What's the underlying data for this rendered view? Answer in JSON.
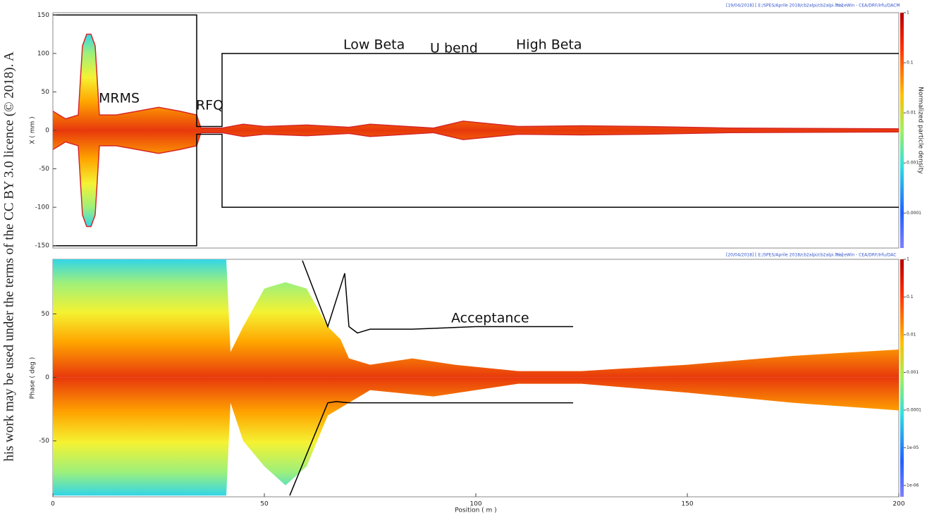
{
  "watermark": "his work may be used under the terms of the CC BY 3.0 licence (© 2018). A",
  "chart_data": [
    {
      "type": "line",
      "header": "[19/04/2018] [ E:/SPES/Aprile 2018/cb2alpi/cb2alpi.ini ]",
      "source": "TraceWin - CEA/DRF/Irfu/DACM",
      "y_label": "X ( mm )",
      "xlim": [
        0,
        200
      ],
      "ylim": [
        -153,
        153
      ],
      "yticks": [
        150,
        100,
        50,
        0,
        -50,
        -100,
        -150
      ],
      "annotations": [
        "MRMS",
        "RFQ",
        "Low Beta",
        "U bend",
        "High Beta"
      ],
      "colorbar_label": "Normalized particle density",
      "colorbar_lim": [
        2e-05,
        1
      ],
      "colorbar_ticks": [
        1,
        0.1,
        0.01,
        0.001,
        0.0001
      ],
      "series": [
        {
          "style": "area-line",
          "color": "#d62728",
          "x": [
            0,
            3,
            6,
            7,
            8,
            9,
            10,
            11,
            15,
            20,
            25,
            30,
            34,
            35,
            40,
            45,
            50,
            60,
            70,
            75,
            90,
            97,
            110,
            125,
            140,
            160,
            200
          ],
          "values": [
            25,
            15,
            20,
            110,
            125,
            125,
            110,
            20,
            20,
            25,
            30,
            25,
            20,
            3,
            3,
            8,
            5,
            7,
            4,
            8,
            3,
            12,
            5,
            6,
            5,
            3,
            2
          ]
        },
        {
          "style": "area-line",
          "color": "#d62728",
          "x": [
            0,
            3,
            6,
            7,
            8,
            9,
            10,
            11,
            15,
            20,
            25,
            30,
            34,
            35,
            40,
            45,
            50,
            60,
            70,
            75,
            90,
            97,
            110,
            125,
            140,
            160,
            200
          ],
          "values": [
            -25,
            -15,
            -20,
            -110,
            -125,
            -125,
            -110,
            -20,
            -20,
            -25,
            -30,
            -25,
            -20,
            -3,
            -3,
            -8,
            -5,
            -7,
            -4,
            -8,
            -3,
            -12,
            -5,
            -6,
            -5,
            -3,
            -2
          ]
        },
        {
          "style": "line",
          "color": "#000000",
          "x": [
            0,
            34,
            34,
            40,
            40,
            200
          ],
          "values": [
            150,
            150,
            5,
            5,
            100,
            100
          ]
        },
        {
          "style": "line",
          "color": "#000000",
          "x": [
            0,
            34,
            34,
            40,
            40,
            200
          ],
          "values": [
            -150,
            -150,
            -5,
            -5,
            -100,
            -100
          ]
        }
      ]
    },
    {
      "type": "line",
      "header": "[20/04/2018] [ E:/SPES/Aprile 2018/cb2alpi/cb2alpi.ini ]",
      "source": "TraceWin - CEA/DRF/Irfu/DAC",
      "y_label": "Phase ( deg )",
      "x_label": "Position ( m )",
      "xlim": [
        0,
        200
      ],
      "xticks": [
        0,
        50,
        100,
        150,
        200
      ],
      "ylim": [
        -94,
        93
      ],
      "yticks": [
        50,
        0,
        -50
      ],
      "annotations": [
        "Acceptance"
      ],
      "colorbar_lim": [
        5e-07,
        1
      ],
      "colorbar_ticks": [
        1,
        0.1,
        0.01,
        0.001,
        0.0001,
        {
          "value": 1e-05,
          "label": "1e-05"
        },
        {
          "value": 1e-06,
          "label": "1e-06"
        }
      ],
      "series": [
        {
          "style": "area",
          "x": [
            0,
            34,
            41,
            42,
            45,
            50,
            55,
            60,
            65,
            68,
            70,
            75,
            85,
            95,
            110,
            125,
            150,
            175,
            200
          ],
          "values": [
            93,
            93,
            93,
            20,
            40,
            70,
            75,
            70,
            40,
            30,
            15,
            10,
            15,
            10,
            5,
            5,
            10,
            17,
            22
          ]
        },
        {
          "style": "area",
          "x": [
            0,
            41,
            42,
            45,
            50,
            55,
            60,
            65,
            70,
            75,
            90,
            110,
            125,
            150,
            175,
            200
          ],
          "values": [
            -93,
            -93,
            -20,
            -50,
            -70,
            -85,
            -70,
            -30,
            -20,
            -10,
            -15,
            -5,
            -5,
            -12,
            -20,
            -26
          ]
        },
        {
          "style": "line",
          "color": "#000000",
          "x": [
            59,
            65,
            69,
            70,
            72,
            75,
            85,
            100,
            110,
            123
          ],
          "values": [
            92,
            40,
            82,
            40,
            35,
            38,
            38,
            40,
            40,
            40
          ]
        },
        {
          "style": "line",
          "color": "#000000",
          "x": [
            56,
            65,
            67,
            70,
            72,
            123
          ],
          "values": [
            -93,
            -20,
            -19,
            -20,
            -20,
            -20
          ]
        }
      ]
    }
  ]
}
